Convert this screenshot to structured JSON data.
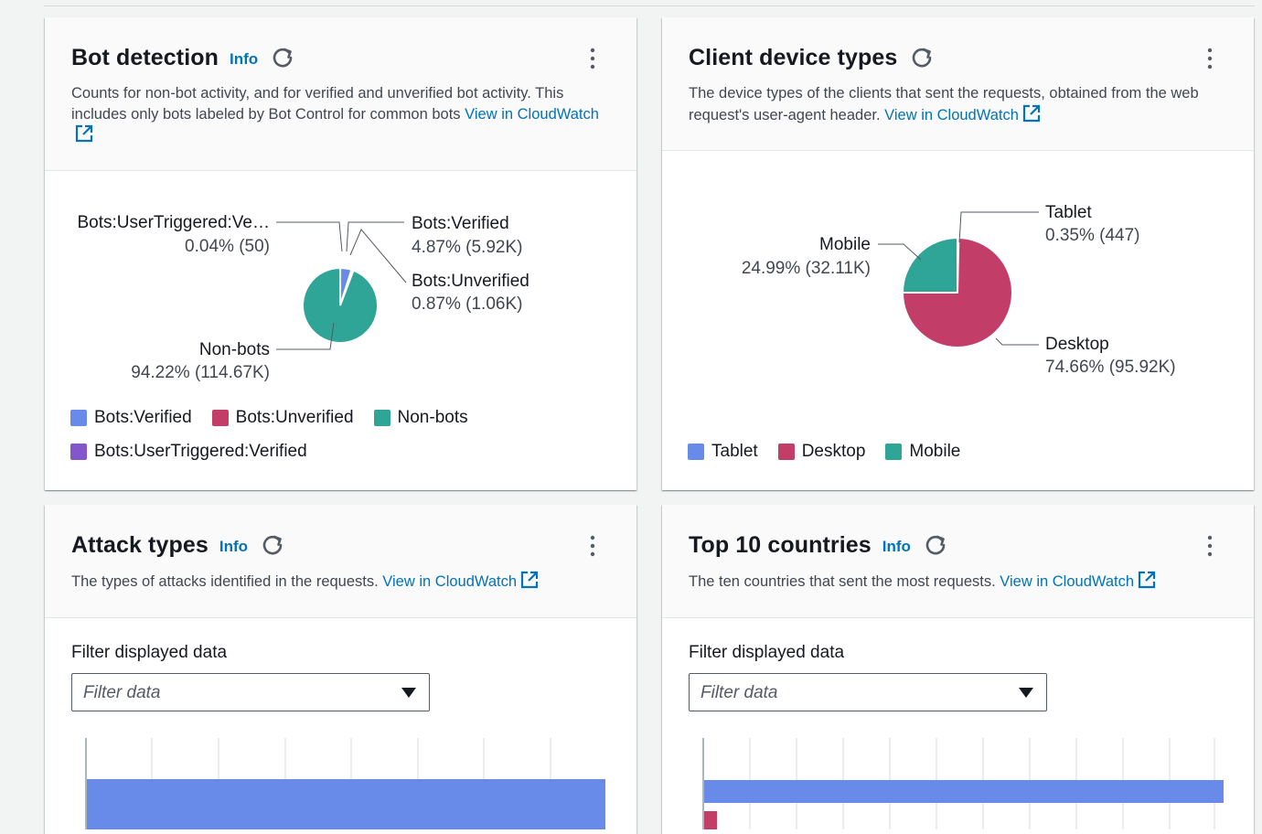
{
  "colors": {
    "blue": "#688ae8",
    "pink": "#c33d69",
    "teal": "#2ea597",
    "purple": "#8456ce",
    "link": "#0073bb"
  },
  "cards": {
    "bot": {
      "title": "Bot detection",
      "info": "Info",
      "desc": "Counts for non-bot activity, and for verified and unverified bot activity. This includes only bots labeled by Bot Control for common bots",
      "link": "View in CloudWatch",
      "chart_data": {
        "type": "pie",
        "slices": [
          {
            "name": "Bots:Verified",
            "percent": 4.87,
            "value_label": "4.87% (5.92K)",
            "color": "#688ae8"
          },
          {
            "name": "Bots:Unverified",
            "percent": 0.87,
            "value_label": "0.87% (1.06K)",
            "color": "#c33d69"
          },
          {
            "name": "Non-bots",
            "percent": 94.22,
            "value_label": "94.22% (114.67K)",
            "color": "#2ea597"
          },
          {
            "name": "Bots:UserTriggered:Verified",
            "display_name": "Bots:UserTriggered:Ve…",
            "percent": 0.04,
            "value_label": "0.04% (50)",
            "color": "#8456ce"
          }
        ]
      },
      "legend": [
        "Bots:Verified",
        "Bots:Unverified",
        "Non-bots",
        "Bots:UserTriggered:Verified"
      ]
    },
    "device": {
      "title": "Client device types",
      "desc": "The device types of the clients that sent the requests, obtained from the web request's user-agent header.",
      "link": "View in CloudWatch",
      "chart_data": {
        "type": "pie",
        "slices": [
          {
            "name": "Tablet",
            "percent": 0.35,
            "value_label": "0.35% (447)",
            "color": "#688ae8"
          },
          {
            "name": "Desktop",
            "percent": 74.66,
            "value_label": "74.66% (95.92K)",
            "color": "#c33d69"
          },
          {
            "name": "Mobile",
            "percent": 24.99,
            "value_label": "24.99% (32.11K)",
            "color": "#2ea597"
          }
        ]
      },
      "legend": [
        "Tablet",
        "Desktop",
        "Mobile"
      ]
    },
    "attack": {
      "title": "Attack types",
      "info": "Info",
      "desc": "The types of attacks identified in the requests.",
      "link": "View in CloudWatch",
      "filter_label": "Filter displayed data",
      "filter_placeholder": "Filter data",
      "chart_data": {
        "type": "bar",
        "orientation": "horizontal",
        "series": [
          {
            "values": [
              1.0
            ],
            "color": "#688ae8"
          }
        ]
      }
    },
    "countries": {
      "title": "Top 10 countries",
      "info": "Info",
      "desc": "The ten countries that sent the most requests.",
      "link": "View in CloudWatch",
      "filter_label": "Filter displayed data",
      "filter_placeholder": "Filter data",
      "chart_data": {
        "type": "bar",
        "orientation": "horizontal",
        "series": [
          {
            "values": [
              1.0
            ],
            "color": "#688ae8"
          },
          {
            "values": [
              0.025
            ],
            "color": "#c33d69"
          }
        ]
      }
    }
  }
}
